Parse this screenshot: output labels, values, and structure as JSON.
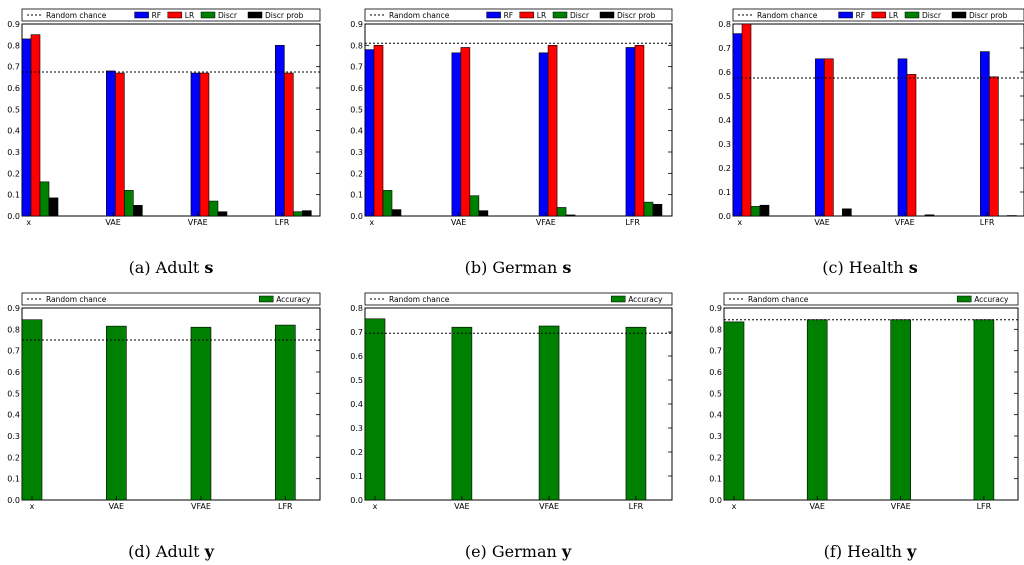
{
  "chart_data": [
    {
      "type": "bar",
      "caption": "(a) Adult",
      "caption_var": "s",
      "categories": [
        "x",
        "VAE",
        "VFAE",
        "LFR"
      ],
      "series": [
        {
          "name": "RF",
          "color": "#0000ff",
          "values": [
            0.83,
            0.68,
            0.67,
            0.8
          ]
        },
        {
          "name": "LR",
          "color": "#ff0000",
          "values": [
            0.85,
            0.67,
            0.67,
            0.67
          ]
        },
        {
          "name": "Discr",
          "color": "#008000",
          "values": [
            0.16,
            0.12,
            0.07,
            0.02
          ]
        },
        {
          "name": "Discr prob",
          "color": "#000000",
          "values": [
            0.085,
            0.05,
            0.02,
            0.025
          ]
        }
      ],
      "reference_line": {
        "name": "Random chance",
        "value": 0.675
      },
      "ylim": [
        0,
        0.9
      ],
      "yticks": [
        "0.0",
        "0.1",
        "0.2",
        "0.3",
        "0.4",
        "0.5",
        "0.6",
        "0.7",
        "0.8",
        "0.9"
      ],
      "grid": false,
      "legend": "top"
    },
    {
      "type": "bar",
      "caption": "(b) German",
      "caption_var": "s",
      "categories": [
        "x",
        "VAE",
        "VFAE",
        "LFR"
      ],
      "series": [
        {
          "name": "RF",
          "color": "#0000ff",
          "values": [
            0.78,
            0.765,
            0.765,
            0.79
          ]
        },
        {
          "name": "LR",
          "color": "#ff0000",
          "values": [
            0.8,
            0.79,
            0.8,
            0.8
          ]
        },
        {
          "name": "Discr",
          "color": "#008000",
          "values": [
            0.12,
            0.095,
            0.04,
            0.065
          ]
        },
        {
          "name": "Discr prob",
          "color": "#000000",
          "values": [
            0.03,
            0.025,
            0.005,
            0.055
          ]
        }
      ],
      "reference_line": {
        "name": "Random chance",
        "value": 0.81
      },
      "ylim": [
        0,
        0.9
      ],
      "yticks": [
        "0.0",
        "0.1",
        "0.2",
        "0.3",
        "0.4",
        "0.5",
        "0.6",
        "0.7",
        "0.8",
        "0.9"
      ],
      "grid": false,
      "legend": "top"
    },
    {
      "type": "bar",
      "caption": "(c) Health",
      "caption_var": "s",
      "categories": [
        "x",
        "VAE",
        "VFAE",
        "LFR"
      ],
      "series": [
        {
          "name": "RF",
          "color": "#0000ff",
          "values": [
            0.76,
            0.655,
            0.655,
            0.685
          ]
        },
        {
          "name": "LR",
          "color": "#ff0000",
          "values": [
            0.8,
            0.655,
            0.59,
            0.58
          ]
        },
        {
          "name": "Discr",
          "color": "#008000",
          "values": [
            0.04,
            0.0,
            0.0,
            0.0
          ]
        },
        {
          "name": "Discr prob",
          "color": "#000000",
          "values": [
            0.045,
            0.03,
            0.005,
            0.002
          ]
        }
      ],
      "reference_line": {
        "name": "Random chance",
        "value": 0.575
      },
      "ylim": [
        0,
        0.8
      ],
      "yticks": [
        "0.0",
        "0.1",
        "0.2",
        "0.3",
        "0.4",
        "0.5",
        "0.6",
        "0.7",
        "0.8"
      ],
      "grid": false,
      "legend": "top"
    },
    {
      "type": "bar",
      "caption": "(d) Adult",
      "caption_var": "y",
      "categories": [
        "x",
        "VAE",
        "VFAE",
        "LFR"
      ],
      "series": [
        {
          "name": "Accuracy",
          "color": "#008000",
          "values": [
            0.845,
            0.815,
            0.81,
            0.82
          ]
        }
      ],
      "reference_line": {
        "name": "Random chance",
        "value": 0.75
      },
      "ylim": [
        0,
        0.9
      ],
      "yticks": [
        "0.0",
        "0.1",
        "0.2",
        "0.3",
        "0.4",
        "0.5",
        "0.6",
        "0.7",
        "0.8",
        "0.9"
      ],
      "grid": false,
      "legend": "top"
    },
    {
      "type": "bar",
      "caption": "(e) German",
      "caption_var": "y",
      "categories": [
        "x",
        "VAE",
        "VFAE",
        "LFR"
      ],
      "series": [
        {
          "name": "Accuracy",
          "color": "#008000",
          "values": [
            0.755,
            0.72,
            0.725,
            0.72
          ]
        }
      ],
      "reference_line": {
        "name": "Random chance",
        "value": 0.695
      },
      "ylim": [
        0,
        0.8
      ],
      "yticks": [
        "0.0",
        "0.1",
        "0.2",
        "0.3",
        "0.4",
        "0.5",
        "0.6",
        "0.7",
        "0.8"
      ],
      "grid": false,
      "legend": "top"
    },
    {
      "type": "bar",
      "caption": "(f) Health",
      "caption_var": "y",
      "categories": [
        "x",
        "VAE",
        "VFAE",
        "LFR"
      ],
      "series": [
        {
          "name": "Accuracy",
          "color": "#008000",
          "values": [
            0.835,
            0.845,
            0.845,
            0.845
          ]
        }
      ],
      "reference_line": {
        "name": "Random chance",
        "value": 0.845
      },
      "ylim": [
        0,
        0.9
      ],
      "yticks": [
        "0.0",
        "0.1",
        "0.2",
        "0.3",
        "0.4",
        "0.5",
        "0.6",
        "0.7",
        "0.8",
        "0.9"
      ],
      "grid": false,
      "legend": "top"
    }
  ]
}
